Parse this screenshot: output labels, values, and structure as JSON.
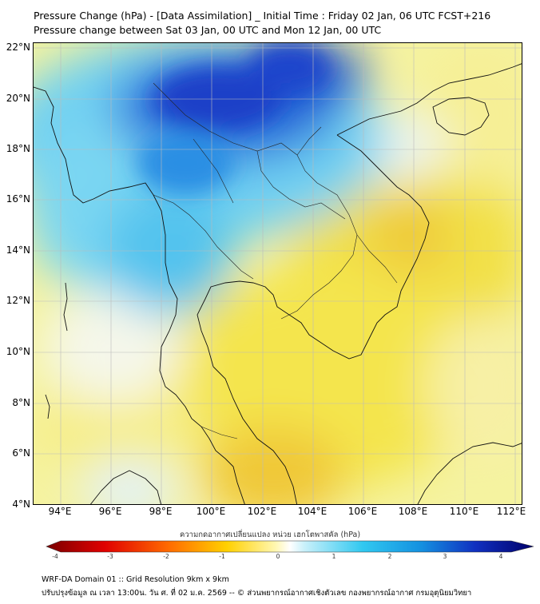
{
  "header": {
    "title_line1": "Pressure Change (hPa) - [Data Assimilation] _ Initial Time : Friday 02 Jan, 06 UTC FCST+216",
    "title_line2": "Pressure change between Sat 03 Jan, 00 UTC and Mon 12 Jan, 00 UTC"
  },
  "map": {
    "lat_labels": [
      "22°N",
      "20°N",
      "18°N",
      "16°N",
      "14°N",
      "12°N",
      "10°N",
      "8°N",
      "6°N",
      "4°N"
    ],
    "lon_labels": [
      "94°E",
      "96°E",
      "98°E",
      "100°E",
      "102°E",
      "104°E",
      "106°E",
      "108°E",
      "110°E",
      "112°E"
    ]
  },
  "colorbar": {
    "title": "ความกดอากาศเปลี่ยนแปลง หน่วย เฮกโตพาสคัล (hPa)",
    "ticks": [
      "-4",
      "-3",
      "-2",
      "-1",
      "0",
      "1",
      "2",
      "3",
      "4"
    ],
    "negative_color": "#8b0000",
    "zero_color": "#ffffff",
    "positive_color": "#00008b"
  },
  "footer": {
    "line1": "WRF-DA Domain 01 :: Grid Resolution 9km x 9km",
    "line2": "ปรับปรุงข้อมูล ณ เวลา 13:00น. วัน ศ. ที่ 02 ม.ค. 2569 -- © ส่วนพยากรณ์อากาศเชิงตัวเลข กองพยากรณ์อากาศ กรมอุตุนิยมวิทยา"
  }
}
